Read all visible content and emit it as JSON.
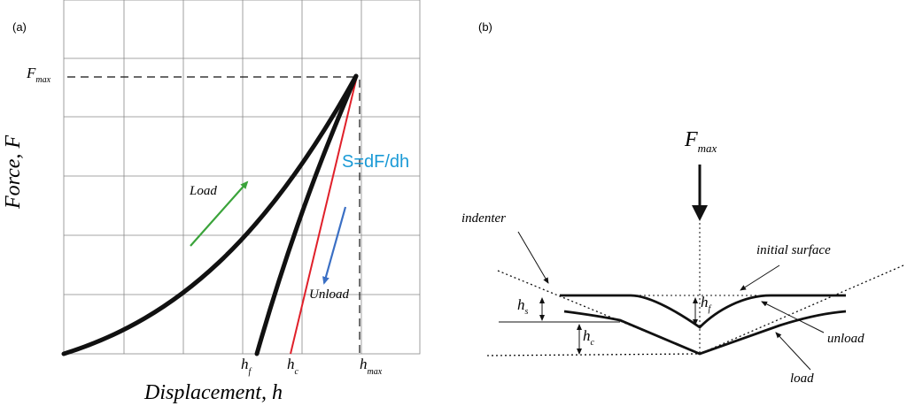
{
  "panel_a": {
    "tag": "(a)",
    "y_axis_label": "Force, F",
    "x_axis_label": "Displacement, h",
    "fmax": {
      "main": "F",
      "sub": "max"
    },
    "hf": {
      "main": "h",
      "sub": "f"
    },
    "hc": {
      "main": "h",
      "sub": "c"
    },
    "hmax": {
      "main": "h",
      "sub": "max"
    },
    "stiffness_label": "S=dF/dh",
    "load_label": "Load",
    "unload_label": "Unload",
    "colors": {
      "load_arrow": "#3aa33a",
      "unload_arrow": "#3a6fc4",
      "tangent": "#e0202a",
      "stiffness_text": "#1a9ad6",
      "curve": "#111111"
    }
  },
  "panel_b": {
    "tag": "(b)",
    "fmax": {
      "main": "F",
      "sub": "max"
    },
    "indenter_label": "indenter",
    "initial_surface_label": "initial surface",
    "unload_label": "unload",
    "load_label": "load",
    "hs": {
      "main": "h",
      "sub": "s"
    },
    "hf": {
      "main": "h",
      "sub": "f"
    },
    "hc": {
      "main": "h",
      "sub": "c"
    }
  }
}
